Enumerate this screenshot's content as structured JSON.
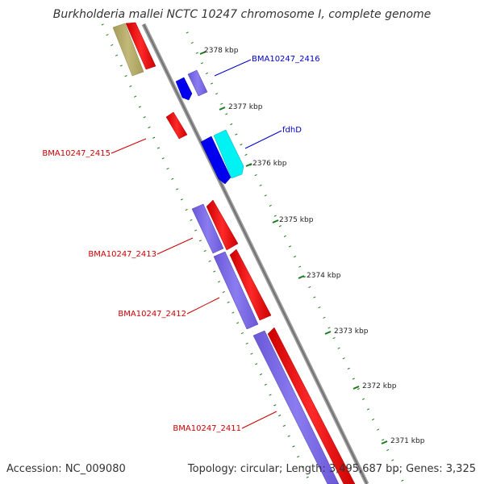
{
  "title": "Burkholderia mallei NCTC 10247 chromosome I, complete genome",
  "footer": {
    "accession": "Accession: NC_009080",
    "summary": "Topology: circular; Length: 3,495,687 bp; Genes: 3,325"
  },
  "scale_ticks": [
    "2378 kbp",
    "2377 kbp",
    "2376 kbp",
    "2375 kbp",
    "2374 kbp",
    "2373 kbp",
    "2372 kbp",
    "2371 kbp"
  ],
  "gene_labels": {
    "bma2416": "BMA10247_2416",
    "fdhD": "fdhD",
    "bma2415": "BMA10247_2415",
    "bma2413": "BMA10247_2413",
    "bma2412": "BMA10247_2412",
    "bma2411": "BMA10247_2411"
  },
  "colors": {
    "cds_forward": "#ff0000",
    "cds_reverse": "#7b68ee",
    "gene_blue": "#0000ee",
    "gene_cyan": "#00ffff",
    "gene_olive": "#b5ac6a",
    "backbone": "#808080",
    "gc_dots": "#1a7a1a",
    "label_red": "#cc0000",
    "label_blue": "#0000cc"
  }
}
